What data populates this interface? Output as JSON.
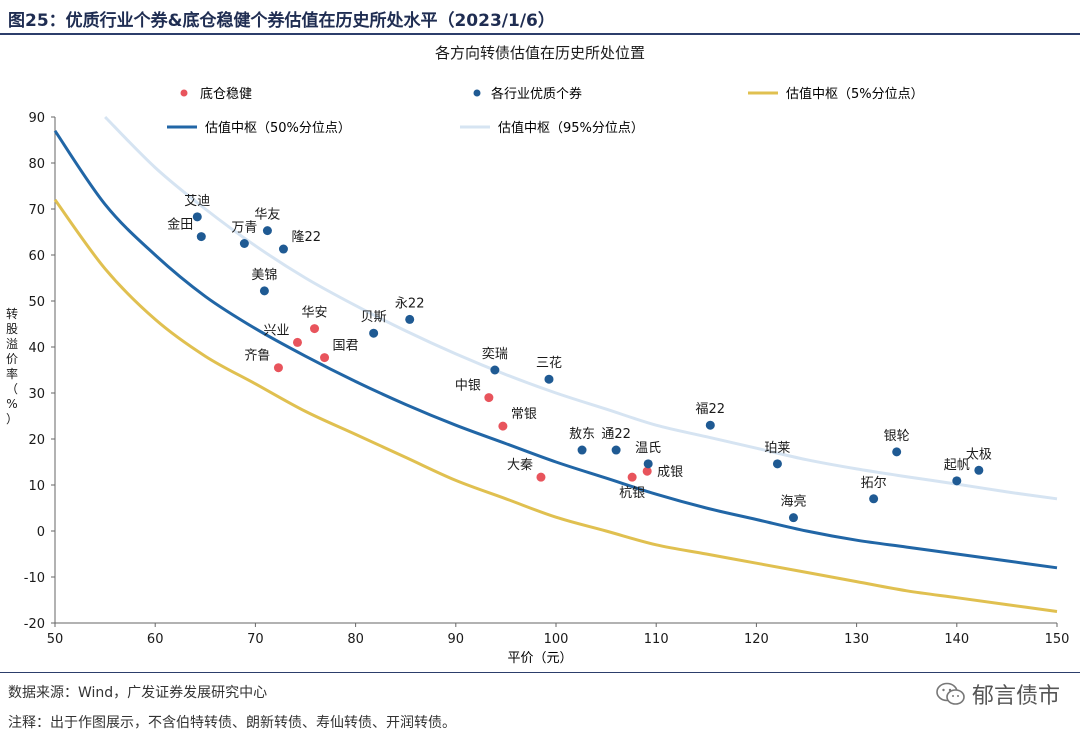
{
  "header": {
    "title": "图25：优质行业个券&底仓稳健个券估值在历史所处水平（2023/1/6）"
  },
  "footer": {
    "source": "数据来源：Wind，广发证券发展研究中心",
    "note": "注释：出于作图展示，不含伯特转债、朗新转债、寿仙转债、开润转债。",
    "brand": "郁言债市"
  },
  "colors": {
    "title": "#1f2d52",
    "dot_red": "#e8545c",
    "dot_blue": "#1f5a93",
    "curve_5": "#e0c050",
    "curve_50": "#2166a6",
    "curve_95": "#d6e4f2"
  },
  "chart_data": {
    "type": "scatter",
    "title": "各方向转债估值在历史所处位置",
    "xlabel": "平价（元）",
    "ylabel": "转股溢价率（%）",
    "xlim": [
      50,
      150
    ],
    "ylim": [
      -20,
      90
    ],
    "xticks": [
      50,
      60,
      70,
      80,
      90,
      100,
      110,
      120,
      130,
      140,
      150
    ],
    "yticks": [
      -20,
      -10,
      0,
      10,
      20,
      30,
      40,
      50,
      60,
      70,
      80,
      90
    ],
    "grid": false,
    "legend": [
      {
        "name": "底仓稳健",
        "kind": "dot",
        "color": "#e8545c"
      },
      {
        "name": "各行业优质个券",
        "kind": "dot",
        "color": "#1f5a93"
      },
      {
        "name": "估值中枢（5%分位点）",
        "kind": "line",
        "color": "#e0c050"
      },
      {
        "name": "估值中枢（50%分位点）",
        "kind": "line",
        "color": "#2166a6"
      },
      {
        "name": "估值中枢（95%分位点）",
        "kind": "line",
        "color": "#d6e4f2"
      }
    ],
    "curves": [
      {
        "name": "估值中枢（5%分位点）",
        "color": "#e0c050",
        "points": [
          [
            50,
            72
          ],
          [
            55,
            57
          ],
          [
            60,
            46
          ],
          [
            65,
            38
          ],
          [
            70,
            32
          ],
          [
            75,
            26
          ],
          [
            80,
            21
          ],
          [
            85,
            16
          ],
          [
            90,
            11
          ],
          [
            95,
            7
          ],
          [
            100,
            3
          ],
          [
            105,
            0
          ],
          [
            110,
            -3
          ],
          [
            115,
            -5
          ],
          [
            120,
            -7
          ],
          [
            125,
            -9
          ],
          [
            130,
            -11
          ],
          [
            135,
            -13
          ],
          [
            140,
            -14.5
          ],
          [
            145,
            -16
          ],
          [
            150,
            -17.5
          ]
        ]
      },
      {
        "name": "估值中枢（50%分位点）",
        "color": "#2166a6",
        "points": [
          [
            50,
            87
          ],
          [
            55,
            71
          ],
          [
            60,
            60
          ],
          [
            65,
            51
          ],
          [
            70,
            44
          ],
          [
            75,
            38
          ],
          [
            80,
            32.5
          ],
          [
            85,
            27.5
          ],
          [
            90,
            23
          ],
          [
            95,
            19
          ],
          [
            100,
            15
          ],
          [
            105,
            11.5
          ],
          [
            110,
            8
          ],
          [
            115,
            5
          ],
          [
            120,
            2.5
          ],
          [
            125,
            0
          ],
          [
            130,
            -2
          ],
          [
            135,
            -3.5
          ],
          [
            140,
            -5
          ],
          [
            145,
            -6.5
          ],
          [
            150,
            -8
          ]
        ]
      },
      {
        "name": "估值中枢（95%分位点）",
        "color": "#d6e4f2",
        "points": [
          [
            55,
            90
          ],
          [
            60,
            79
          ],
          [
            65,
            70
          ],
          [
            70,
            62
          ],
          [
            75,
            55
          ],
          [
            80,
            49
          ],
          [
            85,
            43.5
          ],
          [
            90,
            38.5
          ],
          [
            95,
            34
          ],
          [
            100,
            30
          ],
          [
            105,
            26.5
          ],
          [
            110,
            23
          ],
          [
            115,
            20.5
          ],
          [
            120,
            18
          ],
          [
            125,
            15.5
          ],
          [
            130,
            13.5
          ],
          [
            135,
            11.8
          ],
          [
            140,
            10.2
          ],
          [
            145,
            8.5
          ],
          [
            150,
            7
          ]
        ]
      }
    ],
    "series": [
      {
        "name": "底仓稳健",
        "color": "#e8545c",
        "points": [
          {
            "label": "华安",
            "x": 75.9,
            "y": 44,
            "pos": "top"
          },
          {
            "label": "兴业",
            "x": 74.2,
            "y": 41,
            "pos": "topleft"
          },
          {
            "label": "国君",
            "x": 76.9,
            "y": 37.7,
            "pos": "topright"
          },
          {
            "label": "齐鲁",
            "x": 72.3,
            "y": 35.5,
            "pos": "topleft"
          },
          {
            "label": "中银",
            "x": 93.3,
            "y": 29,
            "pos": "topleft"
          },
          {
            "label": "常银",
            "x": 94.7,
            "y": 22.8,
            "pos": "topright"
          },
          {
            "label": "大秦",
            "x": 98.5,
            "y": 11.7,
            "pos": "topleft"
          },
          {
            "label": "杭银",
            "x": 107.6,
            "y": 11.7,
            "pos": "bottom"
          },
          {
            "label": "成银",
            "x": 109.1,
            "y": 13,
            "pos": "right"
          }
        ]
      },
      {
        "name": "各行业优质个券",
        "color": "#1f5a93",
        "points": [
          {
            "label": "艾迪",
            "x": 64.2,
            "y": 68.3,
            "pos": "top"
          },
          {
            "label": "金田",
            "x": 64.6,
            "y": 64,
            "pos": "topleft"
          },
          {
            "label": "万青",
            "x": 68.9,
            "y": 62.5,
            "pos": "top"
          },
          {
            "label": "华友",
            "x": 71.2,
            "y": 65.3,
            "pos": "top"
          },
          {
            "label": "隆22",
            "x": 72.8,
            "y": 61.3,
            "pos": "topright"
          },
          {
            "label": "美锦",
            "x": 70.9,
            "y": 52.2,
            "pos": "top"
          },
          {
            "label": "贝斯",
            "x": 81.8,
            "y": 43,
            "pos": "top"
          },
          {
            "label": "永22",
            "x": 85.4,
            "y": 46,
            "pos": "top"
          },
          {
            "label": "奕瑞",
            "x": 93.9,
            "y": 35,
            "pos": "top"
          },
          {
            "label": "三花",
            "x": 99.3,
            "y": 33,
            "pos": "top"
          },
          {
            "label": "福22",
            "x": 115.4,
            "y": 23,
            "pos": "top"
          },
          {
            "label": "敖东",
            "x": 102.6,
            "y": 17.6,
            "pos": "top"
          },
          {
            "label": "通22",
            "x": 106,
            "y": 17.6,
            "pos": "top"
          },
          {
            "label": "温氏",
            "x": 109.2,
            "y": 14.6,
            "pos": "top"
          },
          {
            "label": "珀莱",
            "x": 122.1,
            "y": 14.6,
            "pos": "top"
          },
          {
            "label": "银轮",
            "x": 134,
            "y": 17.2,
            "pos": "top"
          },
          {
            "label": "太极",
            "x": 142.2,
            "y": 13.2,
            "pos": "top"
          },
          {
            "label": "起帆",
            "x": 140,
            "y": 10.9,
            "pos": "top"
          },
          {
            "label": "拓尔",
            "x": 131.7,
            "y": 7,
            "pos": "top"
          },
          {
            "label": "海亮",
            "x": 123.7,
            "y": 2.9,
            "pos": "top"
          }
        ]
      }
    ]
  }
}
